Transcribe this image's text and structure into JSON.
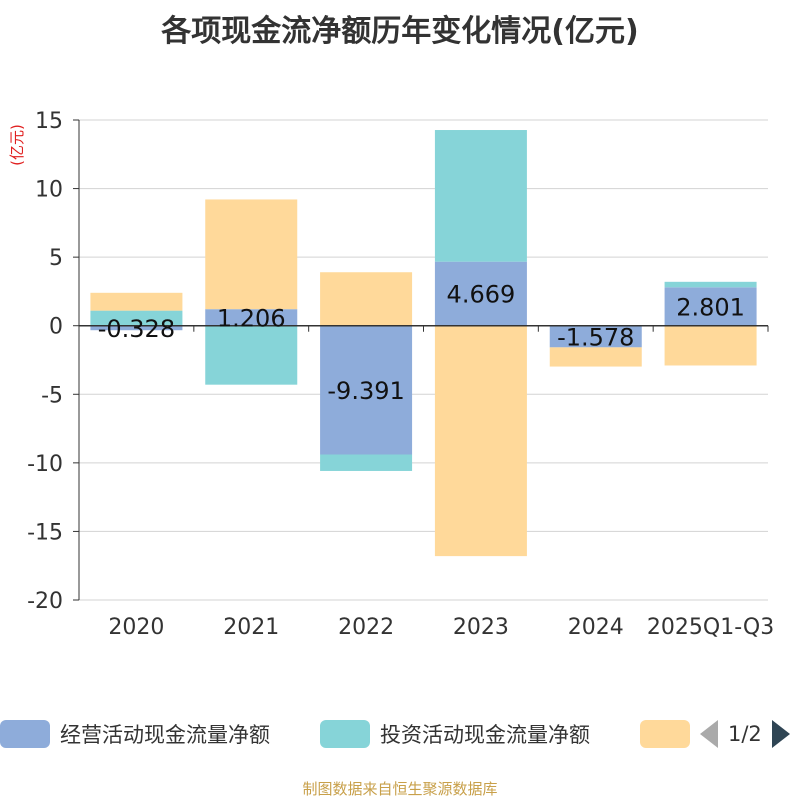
{
  "chart_data": {
    "type": "bar",
    "stacked": true,
    "title": "各项现金流净额历年变化情况(亿元)",
    "ylabel": "(亿元)",
    "xlabel": "",
    "ylim": [
      -20,
      15
    ],
    "yticks": [
      15,
      10,
      5,
      0,
      -5,
      -10,
      -15,
      -20
    ],
    "ytick_labels": [
      "15",
      "10",
      "5",
      "0",
      "-5",
      "-10",
      "-15",
      "-20"
    ],
    "categories": [
      "2020",
      "2021",
      "2022",
      "2023",
      "2024",
      "2025Q1-Q3"
    ],
    "series": [
      {
        "name": "经营活动现金流量净额",
        "color": "#8eacda",
        "values": [
          -0.328,
          1.206,
          -9.391,
          4.669,
          -1.578,
          2.801
        ],
        "labels": [
          "-0.328",
          "1.206",
          "-9.391",
          "4.669",
          "-1.578",
          "2.801"
        ]
      },
      {
        "name": "投资活动现金流量净额",
        "color": "#86d4d8",
        "values": [
          1.1,
          -4.3,
          -1.2,
          9.6,
          0,
          0.4
        ]
      },
      {
        "name": "",
        "color": "#ffd99a",
        "values": [
          1.3,
          8.0,
          3.9,
          -16.8,
          -1.4,
          -2.9
        ]
      }
    ]
  },
  "legend": {
    "items": [
      {
        "label": "经营活动现金流量净额",
        "color": "#8eacda"
      },
      {
        "label": "投资活动现金流量净额",
        "color": "#86d4d8"
      },
      {
        "label": "",
        "color": "#ffd99a"
      }
    ],
    "page": "1/2"
  },
  "source": "制图数据来自恒生聚源数据库"
}
